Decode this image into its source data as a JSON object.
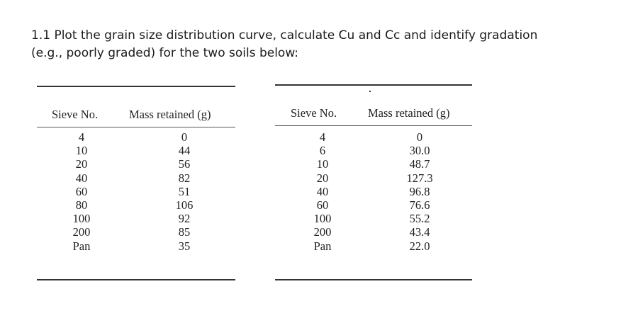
{
  "question": {
    "line1": "1.1 Plot the grain size distribution curve, calculate  Cu and Cc  and identify gradation",
    "line2": "(e.g., poorly graded) for the two soils below:"
  },
  "table1": {
    "headers": [
      "Sieve No.",
      "Mass retained (g)"
    ],
    "sieve": [
      "4",
      "10",
      "20",
      "40",
      "60",
      "80",
      "100",
      "200",
      "Pan"
    ],
    "mass": [
      "0",
      "44",
      "56",
      "82",
      "51",
      "106",
      "92",
      "85",
      "35"
    ]
  },
  "table2": {
    "headers": [
      "Sieve No.",
      "Mass retained (g)"
    ],
    "sieve": [
      "4",
      "6",
      "10",
      "20",
      "40",
      "60",
      "100",
      "200",
      "Pan"
    ],
    "mass": [
      "0",
      "30.0",
      "48.7",
      "127.3",
      "96.8",
      "76.6",
      "55.2",
      "43.4",
      "22.0"
    ]
  }
}
